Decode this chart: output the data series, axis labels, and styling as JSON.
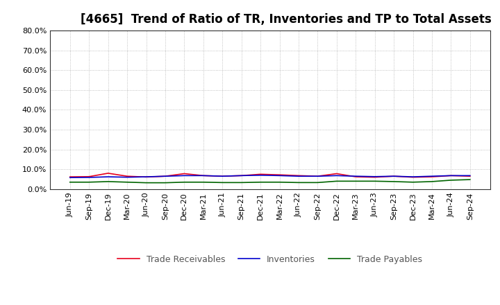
{
  "title": "[4665]  Trend of Ratio of TR, Inventories and TP to Total Assets",
  "x_labels": [
    "Jun-19",
    "Sep-19",
    "Dec-19",
    "Mar-20",
    "Jun-20",
    "Sep-20",
    "Dec-20",
    "Mar-21",
    "Jun-21",
    "Sep-21",
    "Dec-21",
    "Mar-22",
    "Jun-22",
    "Sep-22",
    "Dec-22",
    "Mar-23",
    "Jun-23",
    "Sep-23",
    "Dec-23",
    "Mar-24",
    "Jun-24",
    "Sep-24"
  ],
  "trade_receivables": [
    6.2,
    6.3,
    8.0,
    6.5,
    6.1,
    6.5,
    7.8,
    6.8,
    6.5,
    6.8,
    7.5,
    7.2,
    6.8,
    6.5,
    7.8,
    6.2,
    6.0,
    6.5,
    6.0,
    6.2,
    6.8,
    6.5
  ],
  "inventories": [
    5.8,
    5.9,
    6.2,
    6.0,
    6.2,
    6.5,
    6.8,
    6.8,
    6.5,
    6.8,
    7.0,
    6.8,
    6.5,
    6.5,
    6.8,
    6.5,
    6.3,
    6.5,
    6.2,
    6.5,
    6.8,
    6.8
  ],
  "trade_payables": [
    3.5,
    3.5,
    3.8,
    3.5,
    3.2,
    3.2,
    3.5,
    3.5,
    3.3,
    3.3,
    3.5,
    3.5,
    3.3,
    3.3,
    4.0,
    4.0,
    4.0,
    3.8,
    3.5,
    3.8,
    4.5,
    4.8
  ],
  "tr_color": "#e8001c",
  "inv_color": "#0000cd",
  "tp_color": "#006400",
  "legend_labels": [
    "Trade Receivables",
    "Inventories",
    "Trade Payables"
  ],
  "ylim": [
    0,
    80
  ],
  "yticks": [
    0,
    10,
    20,
    30,
    40,
    50,
    60,
    70,
    80
  ],
  "background_color": "#ffffff",
  "plot_bg_color": "#ffffff",
  "grid_color": "#b0b0b0",
  "title_fontsize": 12,
  "tick_fontsize": 8,
  "legend_fontsize": 9
}
